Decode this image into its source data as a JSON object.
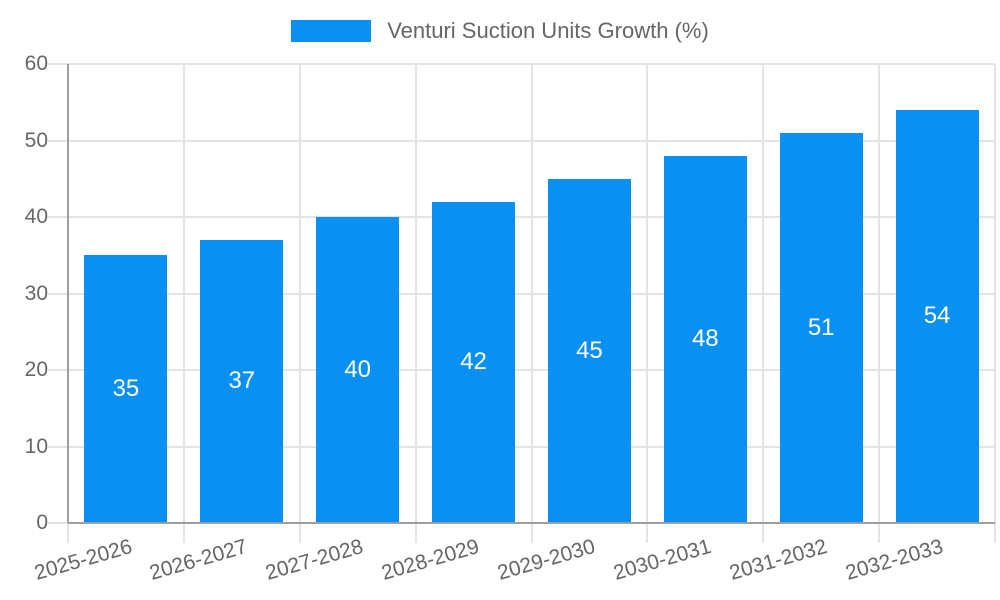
{
  "legend": {
    "label": "Venturi Suction Units Growth (%)"
  },
  "colors": {
    "bar": "#0990f2",
    "grid": "#e4e4e4",
    "axis": "#9e9e9e",
    "text": "#666666",
    "value_label": "#ffffff",
    "background": "#ffffff"
  },
  "chart_data": {
    "type": "bar",
    "title": "Venturi Suction Units Growth (%)",
    "categories": [
      "2025-2026",
      "2026-2027",
      "2027-2028",
      "2028-2029",
      "2029-2030",
      "2030-2031",
      "2031-2032",
      "2032-2033"
    ],
    "values": [
      35,
      37,
      40,
      42,
      45,
      48,
      51,
      54
    ],
    "xlabel": "",
    "ylabel": "",
    "ylim": [
      0,
      60
    ],
    "yticks": [
      0,
      10,
      20,
      30,
      40,
      50,
      60
    ],
    "grid": true,
    "legend_position": "top-center",
    "value_labels": "inside-center",
    "x_tick_rotation_deg": -16
  }
}
